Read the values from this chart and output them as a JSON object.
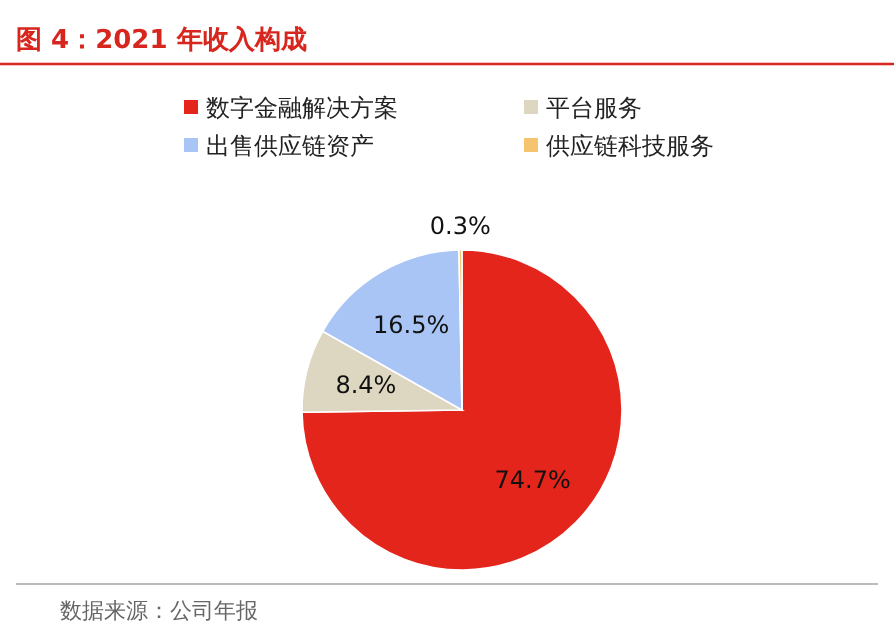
{
  "chart_data": {
    "type": "pie",
    "title": "图 4：2021 年收入构成",
    "categories": [
      "数字金融解决方案",
      "平台服务",
      "出售供应链资产",
      "供应链科技服务"
    ],
    "values": [
      74.7,
      8.4,
      16.5,
      0.3
    ],
    "colors": [
      "#e3251c",
      "#ddd6c1",
      "#a9c5f6",
      "#f6c46e"
    ],
    "value_labels": [
      "74.7%",
      "8.4%",
      "16.5%",
      "0.3%"
    ],
    "legend": "top",
    "annotations": [
      "数据来源：公司年报"
    ]
  }
}
